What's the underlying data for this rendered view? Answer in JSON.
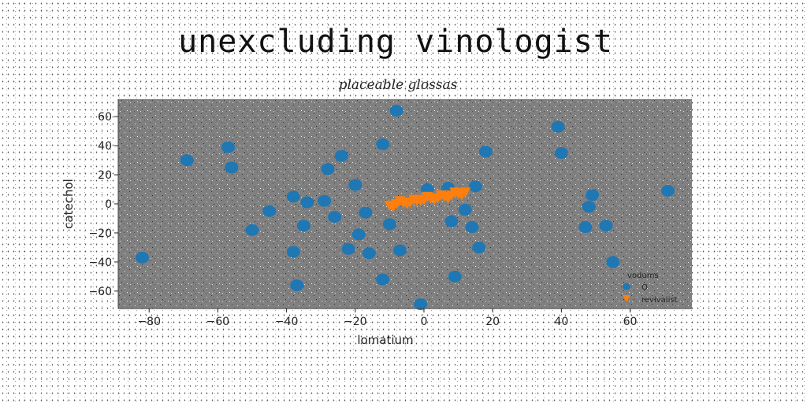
{
  "chart_data": {
    "type": "scatter",
    "title": "unexcluding vinologist",
    "subtitle": "placeable glossas",
    "xlabel": "lomatium",
    "ylabel": "catechol",
    "xlim": [
      -89,
      78
    ],
    "ylim": [
      -72,
      72
    ],
    "xticks": [
      -80,
      -60,
      -40,
      -20,
      0,
      20,
      40,
      60
    ],
    "yticks": [
      -60,
      -40,
      -20,
      0,
      20,
      40,
      60
    ],
    "grid": false,
    "legend": {
      "title": "vodums",
      "placement": "bottom-right",
      "entries": [
        {
          "label": "O",
          "color": "#1f77b4",
          "marker": "circle"
        },
        {
          "label": "revivalist",
          "color": "#ff7f0e",
          "marker": "triangle-down"
        }
      ]
    },
    "series": [
      {
        "name": "O",
        "color": "#1f77b4",
        "marker": "circle",
        "points": [
          [
            -82,
            -37
          ],
          [
            -69,
            30
          ],
          [
            -57,
            39
          ],
          [
            -56,
            25
          ],
          [
            -50,
            -18
          ],
          [
            -45,
            -5
          ],
          [
            -38,
            5
          ],
          [
            -38,
            -33
          ],
          [
            -37,
            -56
          ],
          [
            -35,
            -15
          ],
          [
            -34,
            1
          ],
          [
            -29,
            2
          ],
          [
            -28,
            24
          ],
          [
            -26,
            -9
          ],
          [
            -24,
            33
          ],
          [
            -22,
            -31
          ],
          [
            -20,
            13
          ],
          [
            -19,
            -21
          ],
          [
            -17,
            -6
          ],
          [
            -16,
            -34
          ],
          [
            -12,
            41
          ],
          [
            -12,
            -52
          ],
          [
            -10,
            -14
          ],
          [
            -8,
            64
          ],
          [
            -7,
            -32
          ],
          [
            -1,
            -69
          ],
          [
            1,
            10
          ],
          [
            7,
            11
          ],
          [
            8,
            -12
          ],
          [
            9,
            -50
          ],
          [
            12,
            -4
          ],
          [
            14,
            -16
          ],
          [
            15,
            12
          ],
          [
            16,
            -30
          ],
          [
            18,
            36
          ],
          [
            39,
            53
          ],
          [
            40,
            35
          ],
          [
            47,
            -16
          ],
          [
            48,
            -2
          ],
          [
            49,
            6
          ],
          [
            53,
            -15
          ],
          [
            55,
            -40
          ],
          [
            71,
            9
          ]
        ]
      },
      {
        "name": "revivalist",
        "color": "#ff7f0e",
        "marker": "triangle-down",
        "points": [
          [
            -10,
            -1
          ],
          [
            -8,
            0
          ],
          [
            -6,
            1
          ],
          [
            -4,
            1
          ],
          [
            -2,
            2
          ],
          [
            0,
            3
          ],
          [
            2,
            4
          ],
          [
            4,
            4
          ],
          [
            6,
            5
          ],
          [
            8,
            6
          ],
          [
            10,
            7
          ],
          [
            12,
            8
          ],
          [
            -9,
            -2
          ],
          [
            -5,
            0
          ],
          [
            -1,
            2
          ],
          [
            3,
            3
          ],
          [
            7,
            4
          ],
          [
            11,
            6
          ],
          [
            -7,
            2
          ],
          [
            -3,
            3
          ],
          [
            1,
            5
          ],
          [
            5,
            6
          ],
          [
            9,
            8
          ]
        ]
      }
    ]
  }
}
